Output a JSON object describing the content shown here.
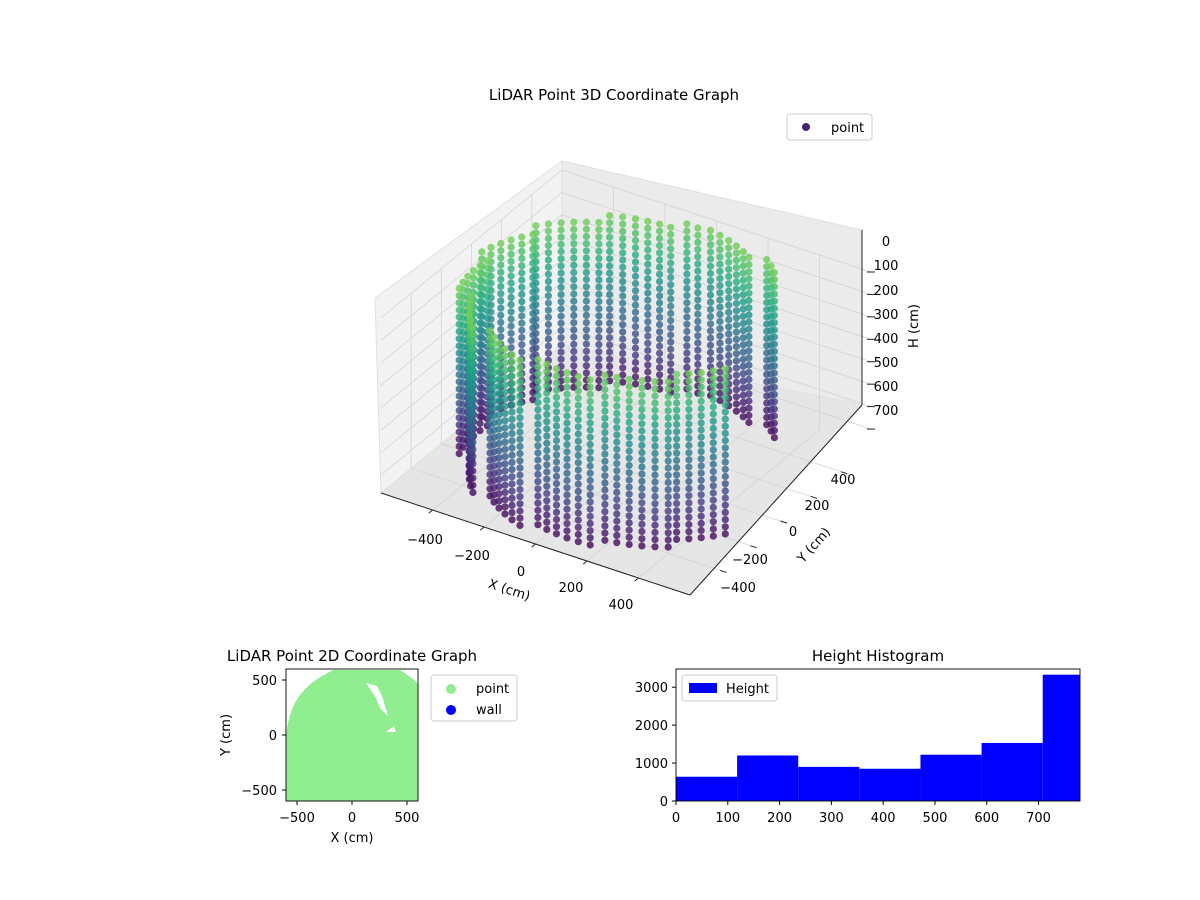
{
  "chart_data": [
    {
      "type": "scatter",
      "projection": "3d",
      "title": "LiDAR Point 3D Coordinate Graph",
      "xlabel": "X (cm)",
      "ylabel": "Y (cm)",
      "zlabel": "H (cm)",
      "x_ticks": [
        -400,
        -200,
        0,
        200,
        400
      ],
      "y_ticks": [
        -400,
        -200,
        0,
        200,
        400
      ],
      "h_ticks": [
        0,
        100,
        200,
        300,
        400,
        500,
        600,
        700
      ],
      "x_tick_labels": [
        "−400",
        "−200",
        "0",
        "200",
        "400"
      ],
      "y_tick_labels": [
        "−400",
        "−200",
        "0",
        "200",
        "400"
      ],
      "h_tick_labels": [
        "0",
        "100",
        "200",
        "300",
        "400",
        "500",
        "600",
        "700"
      ],
      "xlim": [
        -600,
        600
      ],
      "ylim": [
        -600,
        600
      ],
      "hlim": [
        0,
        780
      ],
      "h_axis_inverted": true,
      "grid": true,
      "legend": [
        {
          "label": "point",
          "color": "#482475"
        }
      ],
      "legend_position": "top-right",
      "colormap": "viridis",
      "color_by": "height",
      "series": [
        {
          "name": "point",
          "shape": "open ring of vertical point columns around the origin",
          "radius_range": [
            430,
            560
          ],
          "height_range": [
            0,
            780
          ],
          "azimuth_gap_deg": [
            40,
            110
          ]
        }
      ]
    },
    {
      "type": "scatter",
      "title": "LiDAR Point 2D Coordinate Graph",
      "xlabel": "X (cm)",
      "ylabel": "Y (cm)",
      "x_ticks": [
        -500,
        0,
        500
      ],
      "y_ticks": [
        -500,
        0,
        500
      ],
      "x_tick_labels": [
        "−500",
        "0",
        "500"
      ],
      "y_tick_labels": [
        "−500",
        "0",
        "500"
      ],
      "xlim": [
        -600,
        600
      ],
      "ylim": [
        -600,
        600
      ],
      "legend": [
        {
          "label": "point",
          "color": "#90ee90"
        },
        {
          "label": "wall",
          "color": "#0000ff"
        }
      ],
      "legend_position": "outside-right",
      "series": [
        {
          "name": "point",
          "color": "#90ee90",
          "footprint": "filled region bounded below at y=-600, top edge near y=600, rounded left corner"
        },
        {
          "name": "wall",
          "color": "#0000ff",
          "footprint": "not visible"
        }
      ]
    },
    {
      "type": "bar",
      "subtype": "histogram",
      "title": "Height Histogram",
      "x_ticks": [
        0,
        100,
        200,
        300,
        400,
        500,
        600,
        700
      ],
      "y_ticks": [
        0,
        1000,
        2000,
        3000
      ],
      "xlim": [
        0,
        780
      ],
      "ylim": [
        0,
        3480
      ],
      "bin_edges": [
        0,
        118,
        236,
        354,
        472,
        590,
        708,
        780
      ],
      "values": [
        640,
        1200,
        900,
        850,
        1220,
        1530,
        3330
      ],
      "color": "#0000ff",
      "legend": [
        {
          "label": "Height",
          "color": "#0000ff"
        }
      ],
      "legend_position": "top-left"
    }
  ]
}
